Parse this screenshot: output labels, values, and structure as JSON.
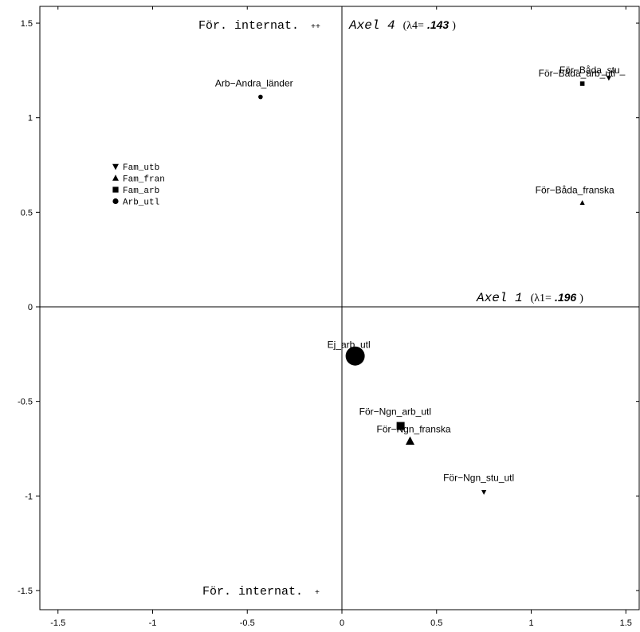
{
  "chart_data": {
    "type": "scatter",
    "xlim": [
      -1.6,
      1.6
    ],
    "ylim": [
      -1.6,
      1.6
    ],
    "x_ticks": [
      -1.5,
      -1,
      -0.5,
      0,
      0.5,
      1,
      1.5
    ],
    "x_tick_labels": [
      "-1.5",
      "-1",
      "-0.5",
      "0",
      "0.5",
      "1",
      "1.5"
    ],
    "y_ticks": [
      1.5,
      1,
      0.5,
      0,
      -0.5,
      -1,
      -1.5
    ],
    "y_tick_labels": [
      "1.5",
      "1",
      "0.5",
      "0",
      "-0.5",
      "-1",
      "-1.5"
    ],
    "grid": false,
    "points": [
      {
        "label": "Arb−Andra_länder",
        "x": -0.43,
        "y": 1.11,
        "marker": "circle",
        "size": "small"
      },
      {
        "label": "För−Båda_stu_",
        "x": 1.41,
        "y": 1.21,
        "marker": "triangle-down",
        "size": "small"
      },
      {
        "label": "För−Båda_arb_utl",
        "x": 1.27,
        "y": 1.18,
        "marker": "square",
        "size": "small"
      },
      {
        "label": "För−Båda_franska",
        "x": 1.27,
        "y": 0.55,
        "marker": "triangle-up",
        "size": "small"
      },
      {
        "label": "Ej_arb_utl",
        "x": 0.07,
        "y": -0.26,
        "marker": "circle",
        "size": "large"
      },
      {
        "label": "För−Ngn_arb_utl",
        "x": 0.31,
        "y": -0.63,
        "marker": "square",
        "size": "medium"
      },
      {
        "label": "För−Ngn_franska",
        "x": 0.36,
        "y": -0.71,
        "marker": "triangle-up",
        "size": "medium"
      },
      {
        "label": "För−Ngn_stu_utl",
        "x": 0.75,
        "y": -0.98,
        "marker": "triangle-down",
        "size": "small"
      }
    ],
    "legend": {
      "placement": "top-left",
      "entries": [
        {
          "label": "Fam_utb",
          "marker": "triangle-down"
        },
        {
          "label": "Fam_fran",
          "marker": "triangle-up"
        },
        {
          "label": "Fam_arb",
          "marker": "square"
        },
        {
          "label": "Arb_utl",
          "marker": "circle"
        }
      ]
    },
    "axis4": {
      "title": "Axel 4",
      "lambda_prefix": "(λ4=",
      "lambda_value": ".143",
      "close": ")"
    },
    "axis1": {
      "title": "Axel 1",
      "lambda_prefix": "(λ1=",
      "lambda_value": ".196",
      "close": ")"
    },
    "corner_top": {
      "text": "För. internat.",
      "sup": "++"
    },
    "corner_bottom": {
      "text": "För. internat.",
      "sup": "+"
    }
  }
}
